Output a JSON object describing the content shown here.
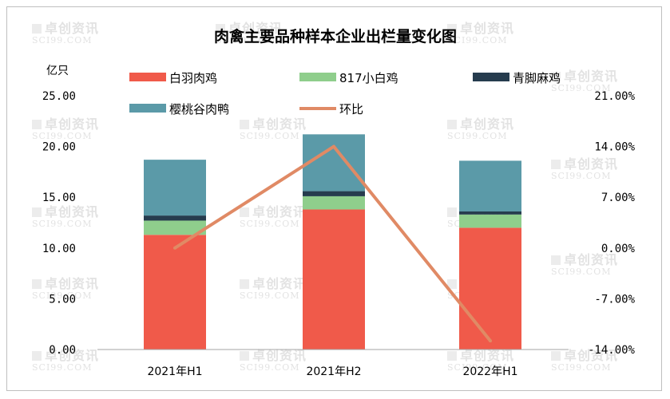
{
  "chart_data": {
    "type": "bar",
    "title": "肉禽主要品种样本企业出栏量变化图",
    "ylabel": "亿只",
    "categories": [
      "2021年H1",
      "2021年H2",
      "2022年H1"
    ],
    "ylim": [
      0,
      25
    ],
    "y_ticks": [
      "0.00",
      "5.00",
      "10.00",
      "15.00",
      "20.00",
      "25.00"
    ],
    "y2lim": [
      -14,
      21
    ],
    "y2_ticks": [
      "-14.00%",
      "-7.00%",
      "0.00%",
      "7.00%",
      "14.00%",
      "21.00%"
    ],
    "stacked": true,
    "series": [
      {
        "name": "白羽肉鸡",
        "type": "bar",
        "color": "#f05a4a",
        "values": [
          11.3,
          13.8,
          12.0
        ]
      },
      {
        "name": "817小白鸡",
        "type": "bar",
        "color": "#8fce8c",
        "values": [
          1.4,
          1.3,
          1.3
        ]
      },
      {
        "name": "青脚麻鸡",
        "type": "bar",
        "color": "#263c4e",
        "values": [
          0.5,
          0.5,
          0.3
        ]
      },
      {
        "name": "樱桃谷肉鸭",
        "type": "bar",
        "color": "#5b9aa8",
        "values": [
          5.5,
          5.6,
          5.0
        ]
      },
      {
        "name": "环比",
        "type": "line",
        "axis": "secondary",
        "color": "#e08a65",
        "values": [
          0.0,
          14.0,
          -12.8
        ]
      }
    ],
    "legend": "top",
    "grid": false
  },
  "watermark": {
    "cn": "卓创资讯",
    "en": "SCI99.COM"
  }
}
